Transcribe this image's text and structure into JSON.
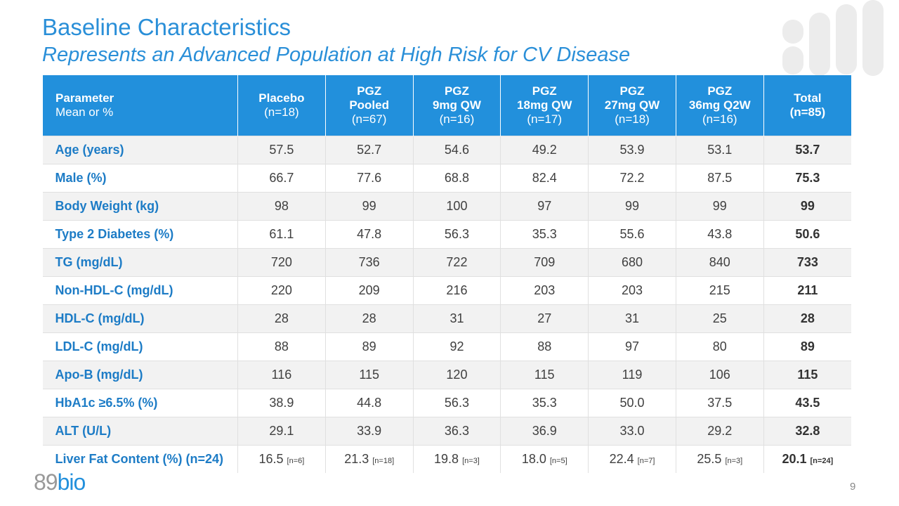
{
  "header": {
    "title": "Baseline Characteristics",
    "subtitle": "Represents an Advanced Population at High Risk for CV Disease"
  },
  "table": {
    "columns": [
      {
        "lines": [
          "Parameter"
        ],
        "sub": "Mean or %"
      },
      {
        "lines": [
          "Placebo"
        ],
        "sub": "(n=18)"
      },
      {
        "lines": [
          "PGZ",
          "Pooled"
        ],
        "sub": "(n=67)"
      },
      {
        "lines": [
          "PGZ",
          "9mg QW"
        ],
        "sub": "(n=16)"
      },
      {
        "lines": [
          "PGZ",
          "18mg QW"
        ],
        "sub": "(n=17)"
      },
      {
        "lines": [
          "PGZ",
          "27mg QW"
        ],
        "sub": "(n=18)"
      },
      {
        "lines": [
          "PGZ",
          "36mg Q2W"
        ],
        "sub": "(n=16)"
      },
      {
        "lines": [
          "Total",
          "(n=85)"
        ]
      }
    ],
    "rows": [
      {
        "label": "Age (years)",
        "cells": [
          "57.5",
          "52.7",
          "54.6",
          "49.2",
          "53.9",
          "53.1",
          "53.7"
        ]
      },
      {
        "label": "Male (%)",
        "cells": [
          "66.7",
          "77.6",
          "68.8",
          "82.4",
          "72.2",
          "87.5",
          "75.3"
        ]
      },
      {
        "label": "Body Weight (kg)",
        "cells": [
          "98",
          "99",
          "100",
          "97",
          "99",
          "99",
          "99"
        ]
      },
      {
        "label": "Type 2 Diabetes (%)",
        "cells": [
          "61.1",
          "47.8",
          "56.3",
          "35.3",
          "55.6",
          "43.8",
          "50.6"
        ]
      },
      {
        "label": "TG (mg/dL)",
        "cells": [
          "720",
          "736",
          "722",
          "709",
          "680",
          "840",
          "733"
        ]
      },
      {
        "label": "Non-HDL-C (mg/dL)",
        "cells": [
          "220",
          "209",
          "216",
          "203",
          "203",
          "215",
          "211"
        ]
      },
      {
        "label": "HDL-C (mg/dL)",
        "cells": [
          "28",
          "28",
          "31",
          "27",
          "31",
          "25",
          "28"
        ]
      },
      {
        "label": "LDL-C (mg/dL)",
        "cells": [
          "88",
          "89",
          "92",
          "88",
          "97",
          "80",
          "89"
        ]
      },
      {
        "label": "Apo-B (mg/dL)",
        "cells": [
          "116",
          "115",
          "120",
          "115",
          "119",
          "106",
          "115"
        ]
      },
      {
        "label": "HbA1c ≥6.5% (%)",
        "cells": [
          "38.9",
          "44.8",
          "56.3",
          "35.3",
          "50.0",
          "37.5",
          "43.5"
        ]
      },
      {
        "label": "ALT (U/L)",
        "cells": [
          "29.1",
          "33.9",
          "36.3",
          "36.9",
          "33.0",
          "29.2",
          "32.8"
        ]
      },
      {
        "label": "Liver Fat Content (%) (n=24)",
        "cells": [
          {
            "value": "16.5",
            "n": "[n=6]"
          },
          {
            "value": "21.3",
            "n": "[n=18]"
          },
          {
            "value": "19.8",
            "n": "[n=3]"
          },
          {
            "value": "18.0",
            "n": "[n=5]"
          },
          {
            "value": "22.4",
            "n": "[n=7]"
          },
          {
            "value": "25.5",
            "n": "[n=3]"
          },
          {
            "value": "20.1",
            "n": "[n=24]"
          }
        ]
      }
    ]
  },
  "footer": {
    "logo": [
      "89",
      "bio"
    ],
    "page": "9"
  }
}
